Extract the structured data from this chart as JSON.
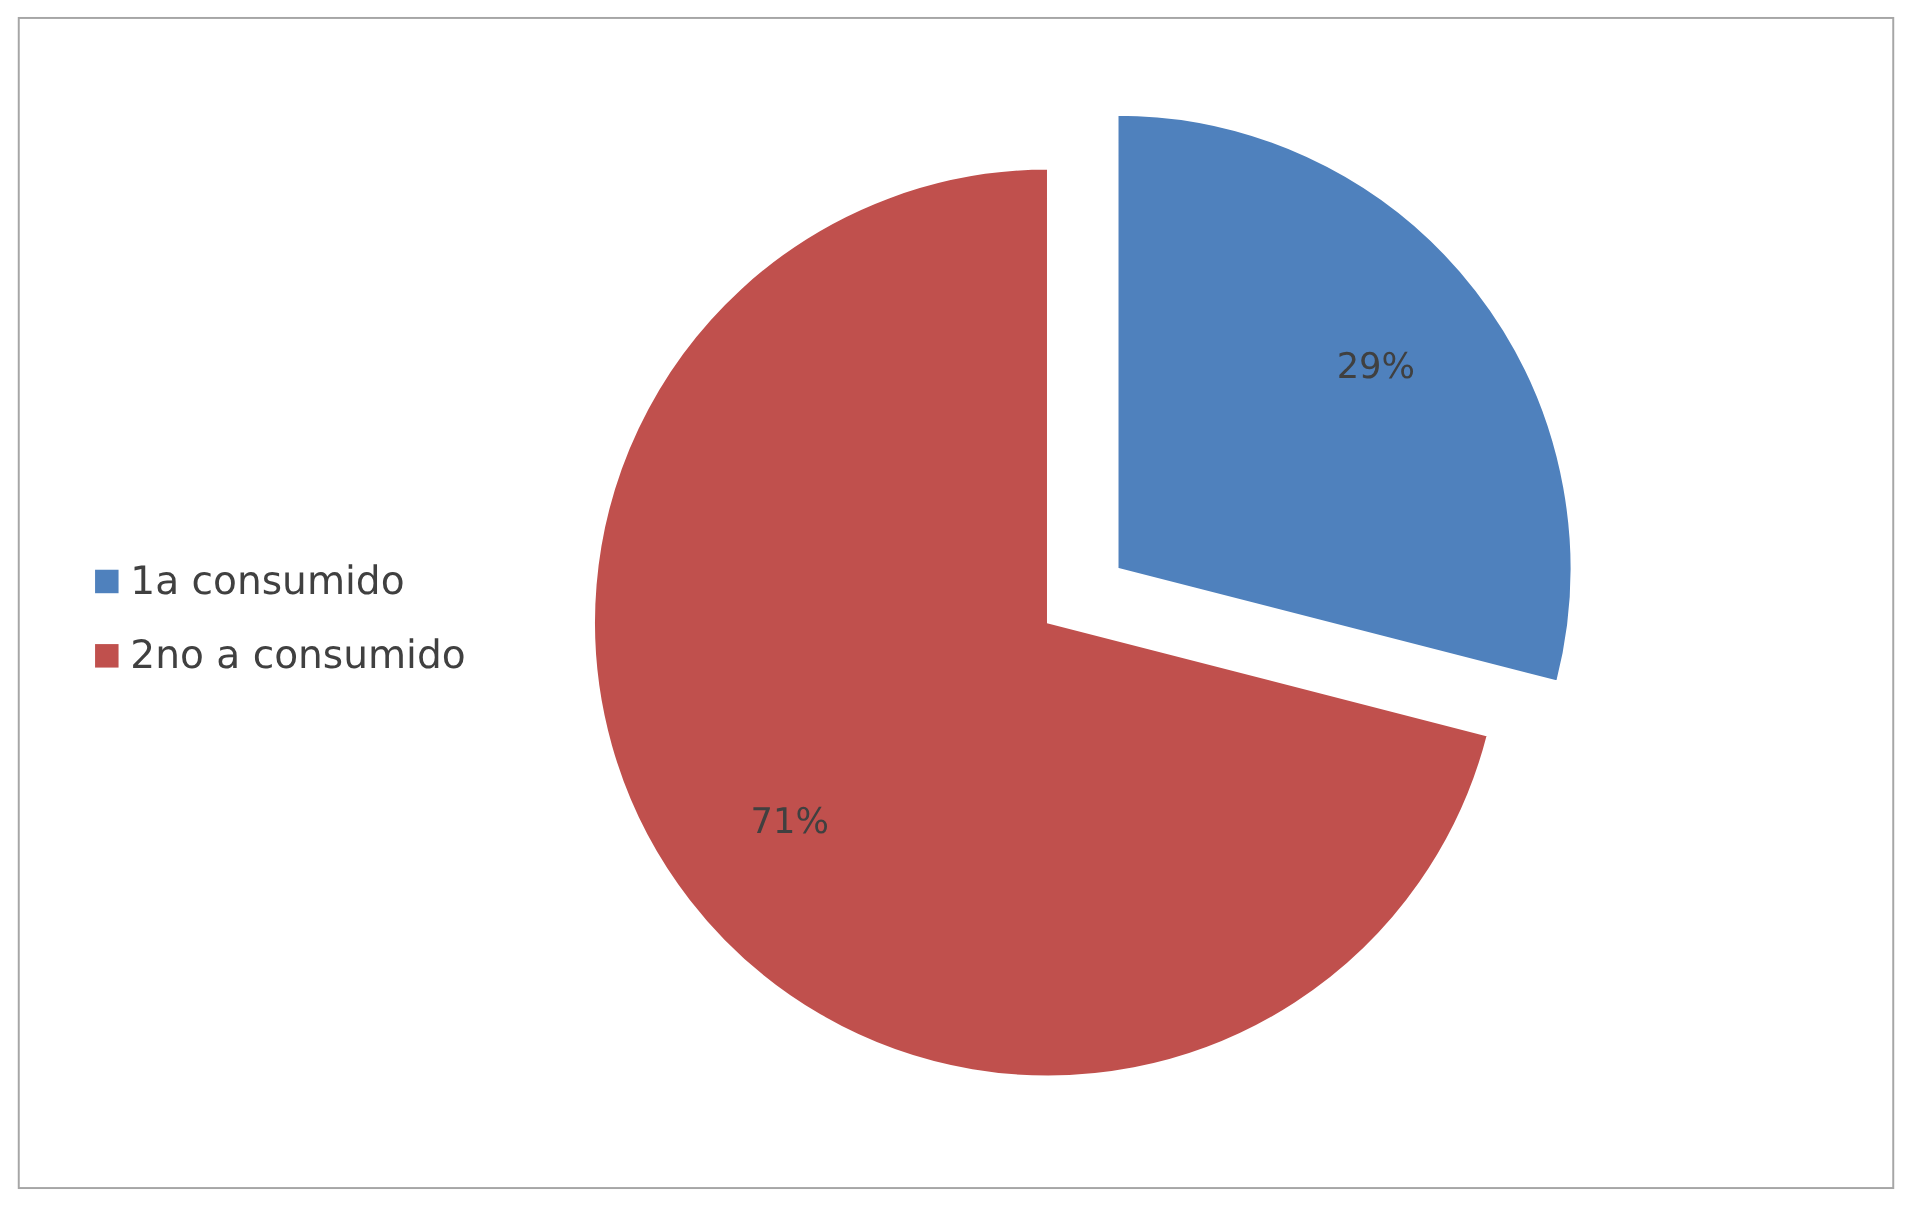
{
  "chart_data": {
    "type": "pie",
    "categories": [
      "1a consumido",
      "2no a consumido"
    ],
    "values": [
      29,
      71
    ],
    "value_labels": [
      "29%",
      "71%"
    ],
    "colors": [
      "#4f81bd",
      "#c0504d"
    ],
    "legend": "left"
  }
}
